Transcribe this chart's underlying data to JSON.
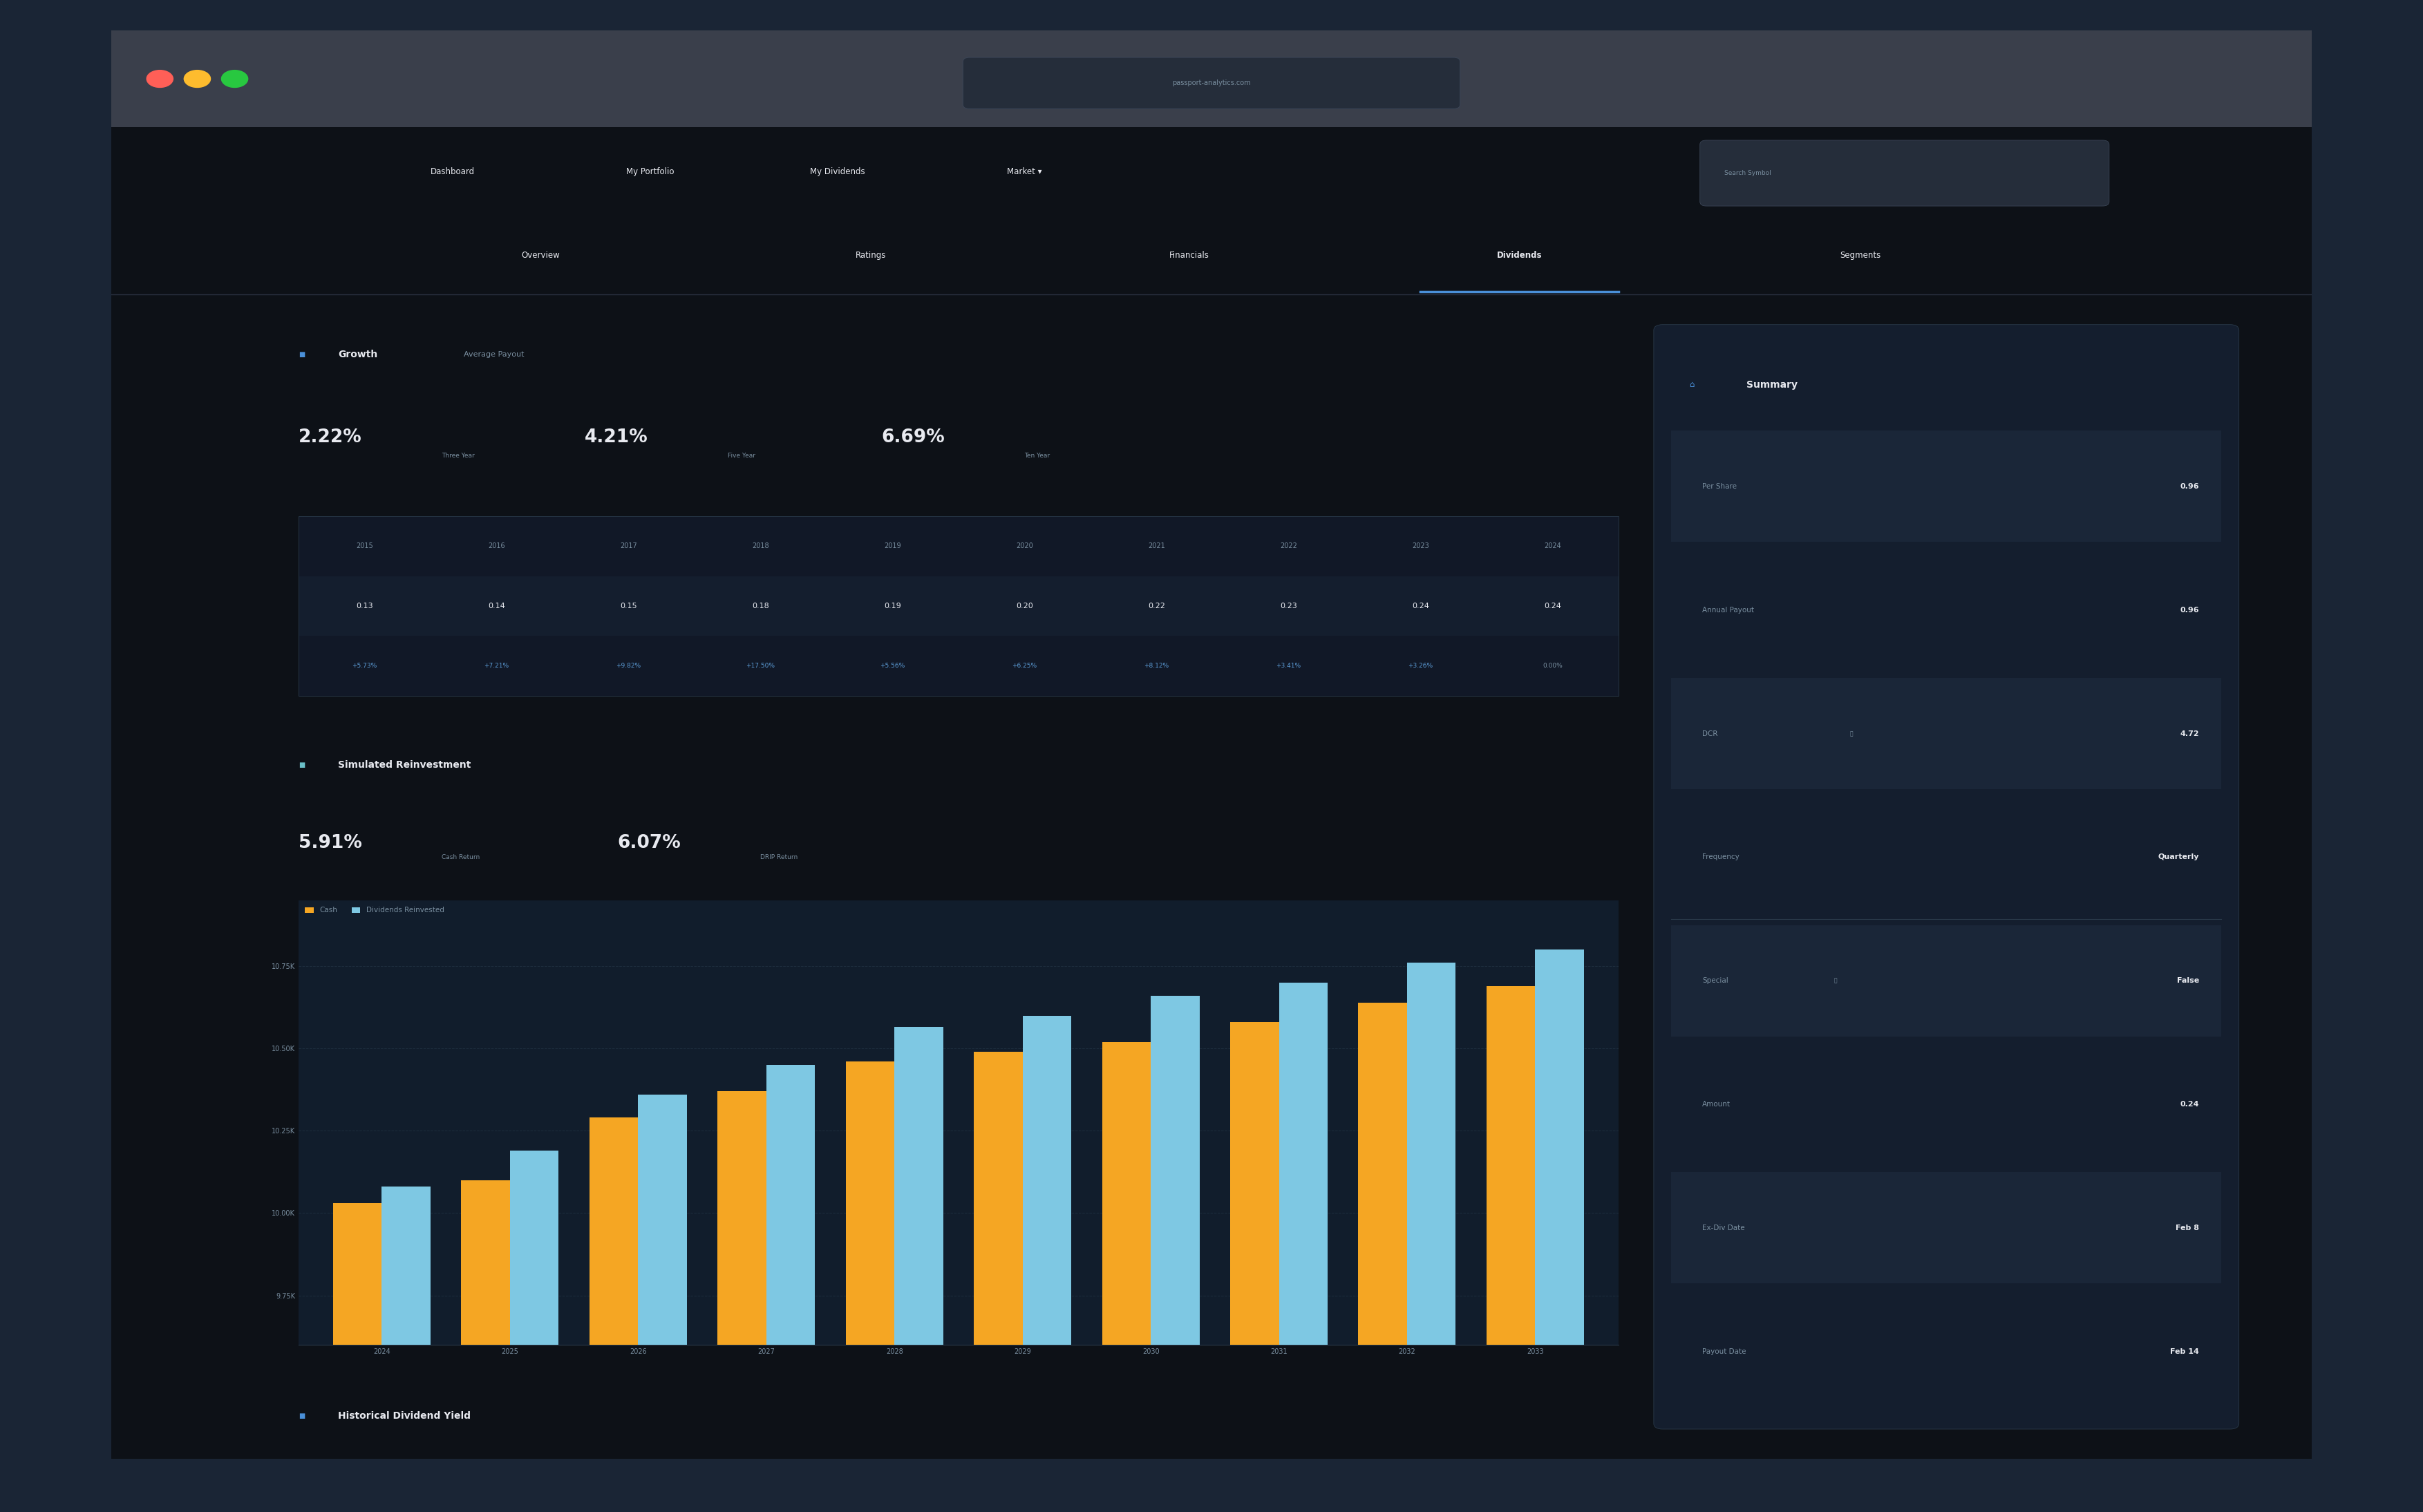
{
  "bg_outer": "#1a2535",
  "bg_browser": "#3a3f4b",
  "bg_main": "#0d1117",
  "bg_content": "#0d1117",
  "bg_card": "#141e2e",
  "bg_table_header": "#111827",
  "bg_table_row": "#141e2e",
  "text_white": "#e8eaf0",
  "text_gray": "#7a8fa0",
  "text_blue": "#5b9bd5",
  "text_green": "#4caf7d",
  "accent_blue": "#4a90d9",
  "nav_tabs": [
    "Overview",
    "Ratings",
    "Financials",
    "Dividends",
    "Segments"
  ],
  "nav_active": "Dividends",
  "nav_main": [
    "Dashboard",
    "My Portfolio",
    "My Dividends",
    "Market ▾"
  ],
  "growth_title": "Growth",
  "growth_subtitle": "Average Payout",
  "growth_3y": "2.22%",
  "growth_3y_label": "Three Year",
  "growth_5y": "4.21%",
  "growth_5y_label": "Five Year",
  "growth_10y": "6.69%",
  "growth_10y_label": "Ten Year",
  "growth_years": [
    "2015",
    "2016",
    "2017",
    "2018",
    "2019",
    "2020",
    "2021",
    "2022",
    "2023",
    "2024"
  ],
  "growth_values": [
    "0.13",
    "0.14",
    "0.15",
    "0.18",
    "0.19",
    "0.20",
    "0.22",
    "0.23",
    "0.24",
    "0.24"
  ],
  "growth_changes": [
    "+5.73%",
    "+7.21%",
    "+9.82%",
    "+17.50%",
    "+5.56%",
    "+6.25%",
    "+8.12%",
    "+3.41%",
    "+3.26%",
    "0.00%"
  ],
  "simulated_title": "Simulated Reinvestment",
  "cash_return": "5.91%",
  "cash_return_label": "Cash Return",
  "drip_return": "6.07%",
  "drip_return_label": "DRIP Return",
  "bar_years": [
    "2024",
    "2025",
    "2026",
    "2027",
    "2028",
    "2029",
    "2030",
    "2031",
    "2032",
    "2033"
  ],
  "bar_cash": [
    10030,
    10100,
    10290,
    10370,
    10460,
    10490,
    10520,
    10580,
    10640,
    10690
  ],
  "bar_drip": [
    10080,
    10190,
    10360,
    10450,
    10565,
    10600,
    10660,
    10700,
    10760,
    10800
  ],
  "bar_yticks": [
    "9.75K",
    "10.00K",
    "10.25K",
    "10.50K",
    "10.75K"
  ],
  "bar_ytick_vals": [
    9750,
    10000,
    10250,
    10500,
    10750
  ],
  "color_cash": "#f5a623",
  "color_drip": "#7ec8e3",
  "historical_title": "Historical Dividend Yield",
  "summary_title": "Summary",
  "summary_rows": [
    [
      "Per Share",
      "0.96"
    ],
    [
      "Annual Payout",
      "0.96"
    ],
    [
      "DCR",
      "4.72"
    ],
    [
      "Frequency",
      "Quarterly"
    ],
    [
      "Special",
      "False"
    ],
    [
      "Amount",
      "0.24"
    ],
    [
      "Ex-Div Date",
      "Feb 8"
    ],
    [
      "Payout Date",
      "Feb 14"
    ]
  ],
  "separator_after_row": 4
}
